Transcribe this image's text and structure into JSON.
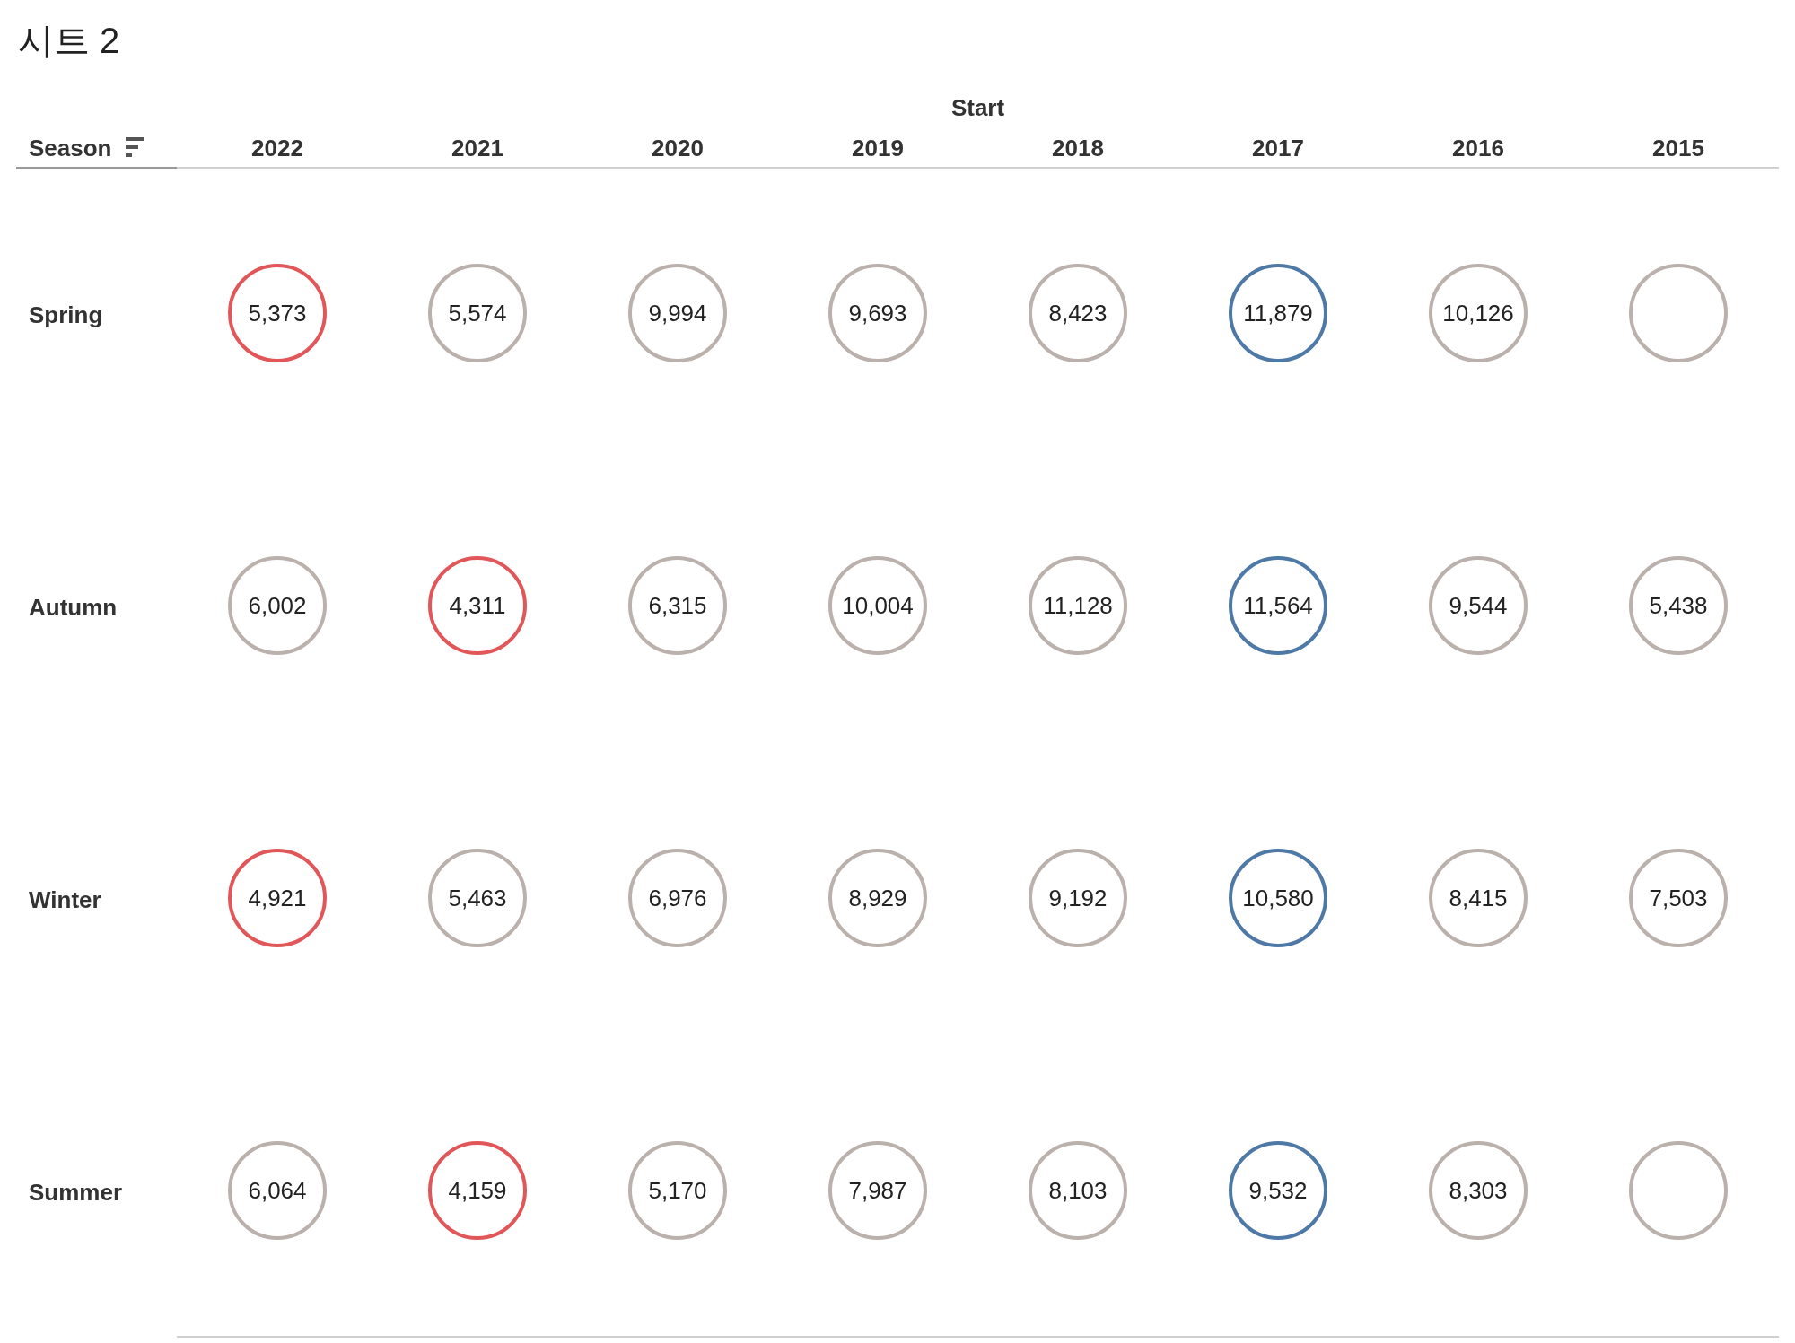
{
  "chart_data": {
    "type": "heatmap",
    "title": "시트 2",
    "xlabel": "Start",
    "ylabel": "Season",
    "categories": [
      "2022",
      "2021",
      "2020",
      "2019",
      "2018",
      "2017",
      "2016",
      "2015"
    ],
    "y_categories": [
      "Spring",
      "Autumn",
      "Winter",
      "Summer"
    ],
    "cells": [
      [
        5373,
        5574,
        9994,
        9693,
        8423,
        11879,
        10126,
        null
      ],
      [
        6002,
        4311,
        6315,
        10004,
        11128,
        11564,
        9544,
        5438
      ],
      [
        4921,
        5463,
        6976,
        8929,
        9192,
        10580,
        8415,
        7503
      ],
      [
        6064,
        4159,
        5170,
        7987,
        8103,
        9532,
        8303,
        null
      ]
    ],
    "cell_labels": [
      [
        "5,373",
        "5,574",
        "9,994",
        "9,693",
        "8,423",
        "11,879",
        "10,126",
        null
      ],
      [
        "6,002",
        "4,311",
        "6,315",
        "10,004",
        "11,128",
        "11,564",
        "9,544",
        "5,438"
      ],
      [
        "4,921",
        "5,463",
        "6,976",
        "8,929",
        "9,192",
        "10,580",
        "8,415",
        "7,503"
      ],
      [
        "6,064",
        "4,159",
        "5,170",
        "7,987",
        "8,103",
        "9,532",
        "8,303",
        null
      ]
    ]
  }
}
